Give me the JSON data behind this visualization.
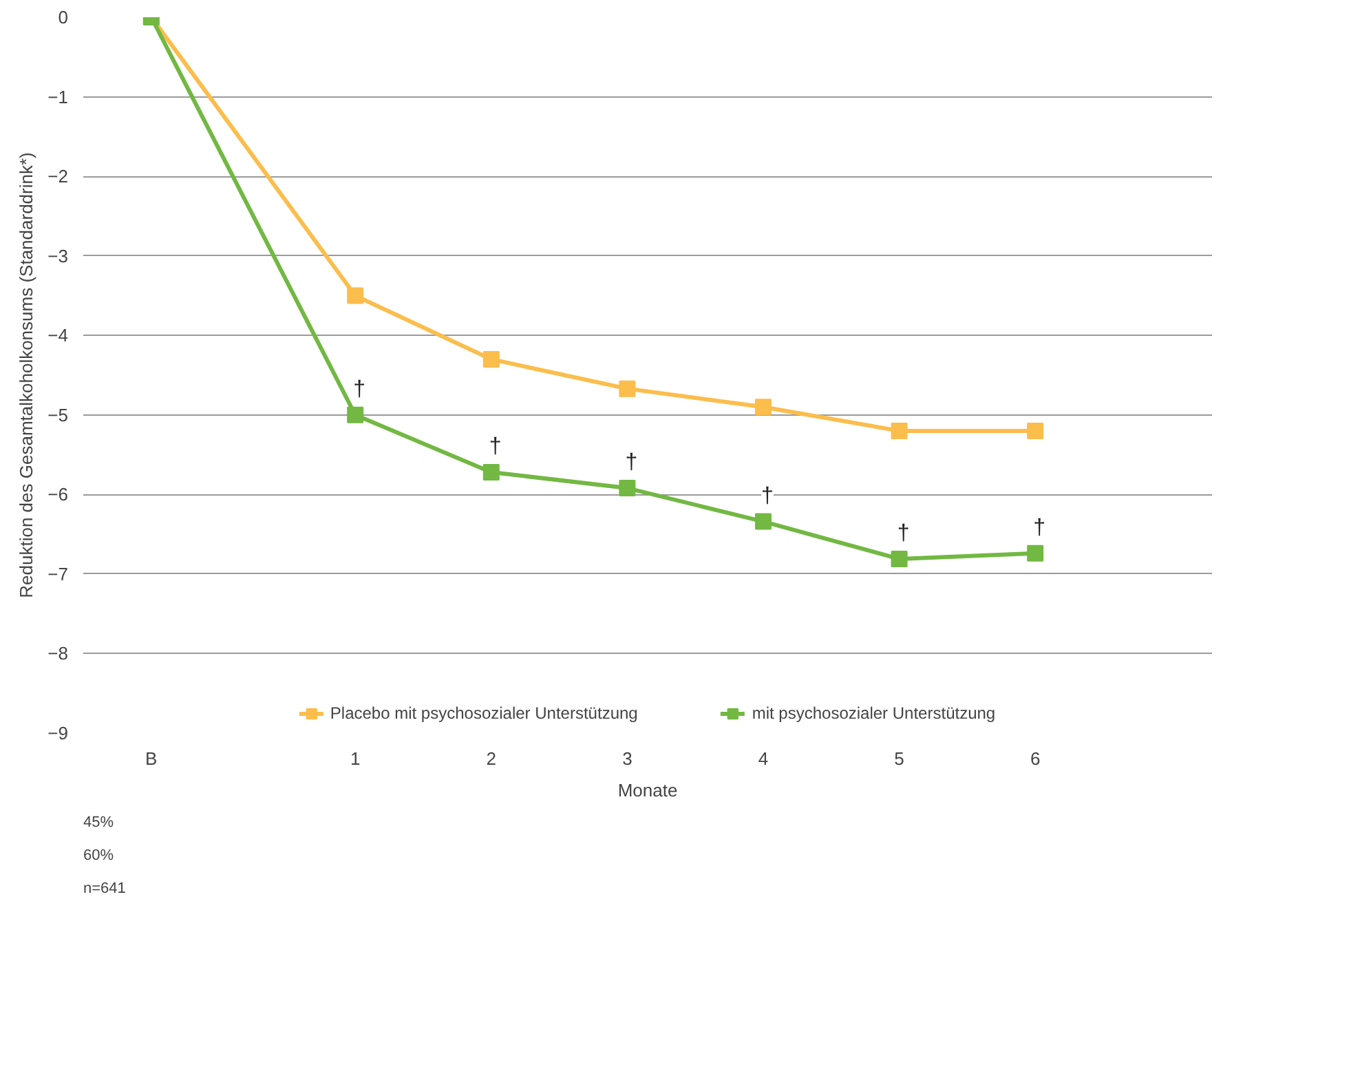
{
  "chart_data": {
    "type": "line",
    "ylabel": "Reduktion des Gesamtalkoholkonsums (Standarddrink*)",
    "xlabel": "Monate",
    "x": [
      -0.5,
      1,
      2,
      3,
      4,
      5,
      6
    ],
    "xlim": [
      -1.0,
      7.3
    ],
    "xticks": [
      {
        "value": -0.5,
        "label": "B"
      },
      1,
      2,
      3,
      4,
      5,
      6
    ],
    "ylim": [
      -9,
      0
    ],
    "yticks": [
      -9,
      -8,
      -7,
      -6,
      -5,
      -4,
      -3,
      -2,
      -1,
      0
    ],
    "series": [
      {
        "name": "Placebo mit psychosozialer Unterstützung",
        "color": "#fbbd4c",
        "values": [
          0,
          -3.5,
          -4.3,
          -4.67,
          -4.9,
          -5.2,
          -5.2
        ]
      },
      {
        "name": "mit psychosozialer Unterstützung",
        "color": "#72b843",
        "values": [
          0,
          -5.0,
          -5.72,
          -5.92,
          -6.34,
          -6.81,
          -6.74
        ]
      }
    ],
    "annotations": [
      "45%",
      "60%",
      {
        "text": "†",
        "x": 1,
        "y": -5.0
      },
      {
        "text": "†",
        "x": 2,
        "y": -5.72
      },
      {
        "text": "†",
        "x": 3,
        "y": -5.92
      },
      {
        "text": "†",
        "x": 4,
        "y": -6.34
      },
      {
        "text": "†",
        "x": 5,
        "y": -6.81
      },
      {
        "text": "†",
        "x": 6,
        "y": -6.74
      },
      "n=641"
    ],
    "grid": "y",
    "legend": "bottom",
    "marker": "square",
    "line_style": "solid"
  }
}
